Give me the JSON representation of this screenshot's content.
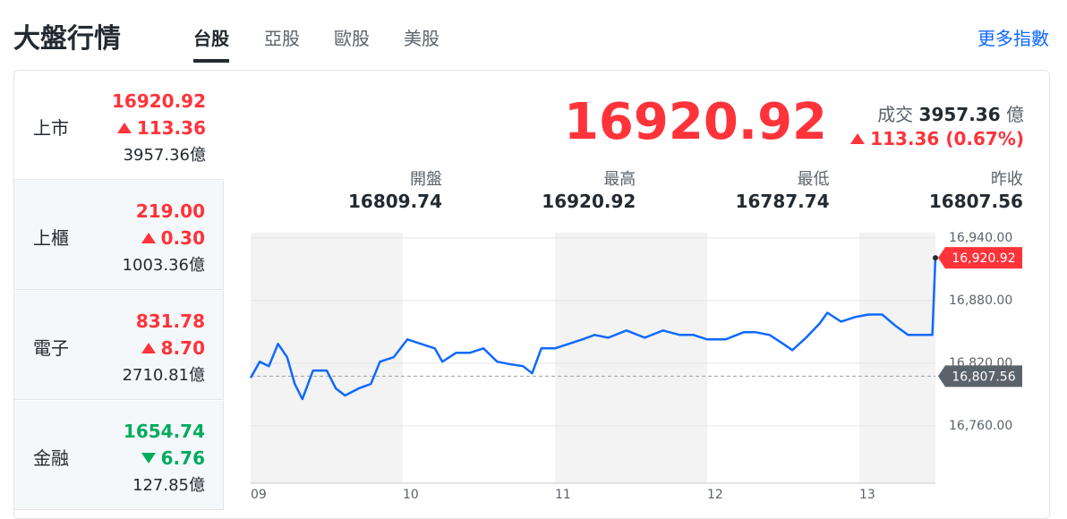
{
  "header": {
    "title": "大盤行情",
    "tabs": [
      "台股",
      "亞股",
      "歐股",
      "美股"
    ],
    "active_tab": 0,
    "more_link": "更多指數"
  },
  "sidebar": [
    {
      "name": "上市",
      "price": "16920.92",
      "change": "113.36",
      "volume": "3957.36",
      "unit": "億",
      "direction": "up",
      "color": "#ff333a"
    },
    {
      "name": "上櫃",
      "price": "219.00",
      "change": "0.30",
      "volume": "1003.36",
      "unit": "億",
      "direction": "up",
      "color": "#ff333a"
    },
    {
      "name": "電子",
      "price": "831.78",
      "change": "8.70",
      "volume": "2710.81",
      "unit": "億",
      "direction": "up",
      "color": "#ff333a"
    },
    {
      "name": "金融",
      "price": "1654.74",
      "change": "6.76",
      "volume": "127.85",
      "unit": "億",
      "direction": "down",
      "color": "#00ab5e"
    }
  ],
  "quote": {
    "price": "16920.92",
    "volume_label": "成交",
    "volume": "3957.36",
    "unit": "億",
    "change": "113.36",
    "change_percent": "(0.67%)",
    "direction": "up",
    "color": "#ff333a",
    "stats": [
      {
        "label": "開盤",
        "value": "16809.74"
      },
      {
        "label": "最高",
        "value": "16920.92"
      },
      {
        "label": "最低",
        "value": "16787.74"
      },
      {
        "label": "昨收",
        "value": "16807.56"
      }
    ]
  },
  "chart_data": {
    "type": "line",
    "color": "#0f69ff",
    "x": [
      9.0,
      9.06,
      9.12,
      9.18,
      9.24,
      9.29,
      9.34,
      9.41,
      9.5,
      9.56,
      9.62,
      9.71,
      9.79,
      9.85,
      9.94,
      10.03,
      10.12,
      10.21,
      10.26,
      10.35,
      10.44,
      10.53,
      10.62,
      10.71,
      10.79,
      10.85,
      10.91,
      11.0,
      11.09,
      11.18,
      11.26,
      11.35,
      11.47,
      11.59,
      11.71,
      11.82,
      11.91,
      12.0,
      12.12,
      12.24,
      12.32,
      12.41,
      12.5,
      12.56,
      12.65,
      12.74,
      12.79,
      12.88,
      12.97,
      13.06,
      13.15,
      13.24,
      13.32,
      13.41,
      13.48,
      13.5
    ],
    "values": [
      16806.0,
      16821.4,
      16817.1,
      16838.5,
      16825.7,
      16800.1,
      16785.6,
      16812.9,
      16812.9,
      16795.8,
      16789.0,
      16795.8,
      16800.1,
      16821.4,
      16825.7,
      16842.7,
      16838.5,
      16834.2,
      16821.4,
      16829.9,
      16829.9,
      16834.2,
      16821.4,
      16818.8,
      16817.1,
      16810.3,
      16834.2,
      16834.2,
      16838.5,
      16842.7,
      16847.0,
      16844.4,
      16851.3,
      16844.4,
      16851.3,
      16847.0,
      16847.0,
      16842.7,
      16842.7,
      16849.6,
      16849.6,
      16847.0,
      16838.5,
      16832.5,
      16844.4,
      16858.1,
      16868.3,
      16859.8,
      16864.1,
      16866.6,
      16866.6,
      16855.5,
      16847.0,
      16847.0,
      16847.0,
      16920.92
    ],
    "xlim": [
      9,
      13.5
    ],
    "xticks": [
      {
        "value": 9,
        "label": "09"
      },
      {
        "value": 10,
        "label": "10"
      },
      {
        "value": 11,
        "label": "11"
      },
      {
        "value": 12,
        "label": "12"
      },
      {
        "value": 13,
        "label": "13"
      }
    ],
    "ylim": [
      16705,
      16945
    ],
    "yticks": [
      {
        "value": 16760,
        "label": "16,760.00"
      },
      {
        "value": 16820,
        "label": "16,820.00"
      },
      {
        "value": 16880,
        "label": "16,880.00"
      },
      {
        "value": 16940,
        "label": "16,940.00"
      }
    ],
    "grid": true,
    "reference_line": {
      "value": 16807.56,
      "label": "16,807.56",
      "color": "#5b636a"
    },
    "last_value_label": "16,920.92"
  }
}
